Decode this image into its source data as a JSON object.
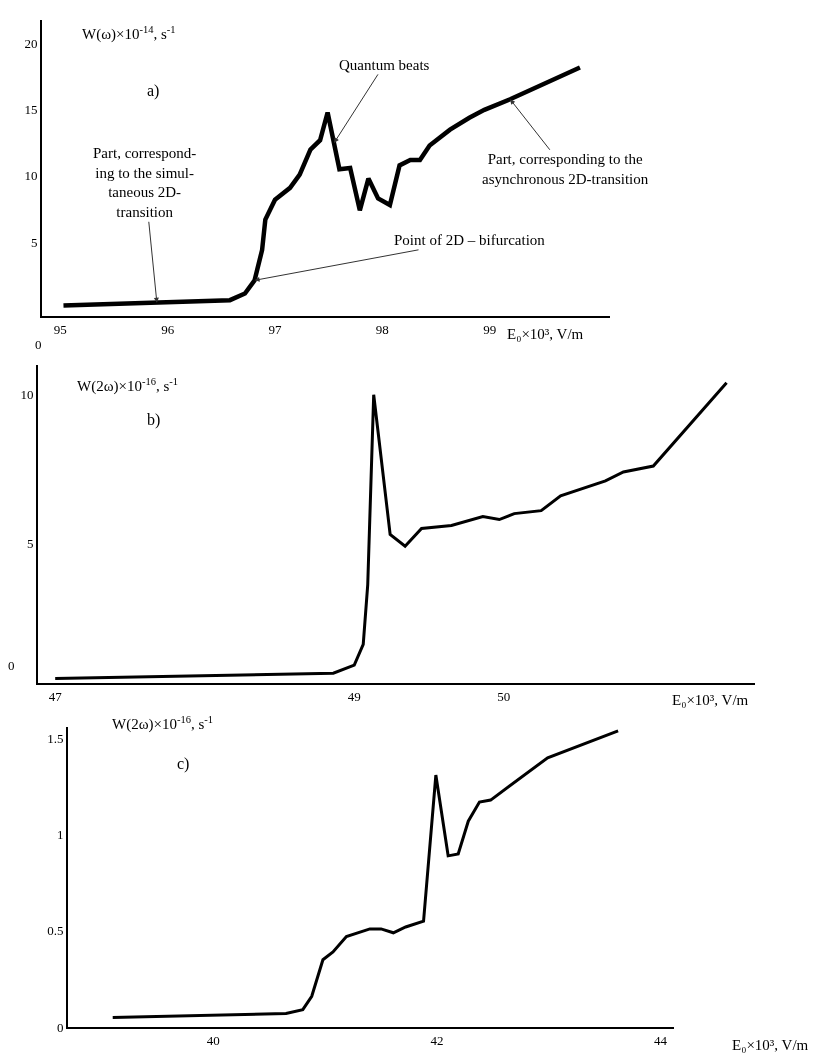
{
  "chart_data": [
    {
      "type": "line",
      "ylabel": "W(ω)×10$^{-14}$, s$^{-1}$",
      "xlabel": "E₀×10³, V/m",
      "xlim": [
        94.83,
        100.12
      ],
      "ylim": [
        -0.6,
        21.8
      ],
      "xticks": [
        95,
        96,
        97,
        98,
        99
      ],
      "yticks": [
        5,
        10,
        15,
        20
      ],
      "marker": "none",
      "line_style": "solid",
      "annotations": [
        "a)",
        {
          "text": "Quantum beats",
          "x": 97.55,
          "y": 12.5
        },
        {
          "text": "Point of 2D – bifurcation",
          "x": 96.81,
          "y": 2.1
        },
        {
          "text": "Part, correspond-\ning to the simul-\ntaneous 2D-\ntransition",
          "x": 95.9,
          "y": 0.4
        },
        {
          "text": "Part, corresponding to the\nasynchronous 2D-transition",
          "x": 99.19,
          "y": 15.8
        },
        "0"
      ],
      "x": [
        95.03,
        96.58,
        96.72,
        96.81,
        96.88,
        96.91,
        97.0,
        97.14,
        97.23,
        97.33,
        97.42,
        97.49,
        97.6,
        97.7,
        97.79,
        97.87,
        97.96,
        98.07,
        98.16,
        98.26,
        98.35,
        98.44,
        98.63,
        98.81,
        98.95,
        99.19,
        99.84
      ],
      "series": [
        {
          "color": "#000000",
          "values": [
            0.2,
            0.6,
            1.1,
            2.1,
            4.4,
            6.7,
            8.2,
            9.1,
            10.1,
            12.0,
            12.7,
            14.8,
            10.5,
            10.6,
            7.4,
            9.8,
            8.3,
            7.8,
            10.8,
            11.2,
            11.2,
            12.3,
            13.5,
            14.4,
            15.0,
            15.8,
            18.2
          ]
        }
      ]
    },
    {
      "type": "line",
      "ylabel": "W(2ω)×10$^{-16}$, s$^{-1}$",
      "xlabel": "E₀×10³, V/m",
      "xlim": [
        46.885,
        51.68
      ],
      "ylim": [
        0.3,
        11.0
      ],
      "xticks": [
        47,
        49,
        50
      ],
      "yticks": [
        5,
        10
      ],
      "marker": "none",
      "line_style": "solid",
      "annotations": [
        "b)",
        "0"
      ],
      "x": [
        47.0,
        48.86,
        49.0,
        49.06,
        49.09,
        49.13,
        49.24,
        49.34,
        49.45,
        49.65,
        49.86,
        49.97,
        50.07,
        50.25,
        50.38,
        50.68,
        50.8,
        51.0,
        51.49
      ],
      "series": [
        {
          "color": "#000000",
          "values": [
            0.45,
            0.63,
            0.9,
            1.6,
            3.6,
            10.0,
            5.3,
            4.9,
            5.5,
            5.6,
            5.9,
            5.8,
            6.0,
            6.1,
            6.6,
            7.1,
            7.4,
            7.6,
            10.4
          ]
        }
      ]
    },
    {
      "type": "line",
      "ylabel": "W(2ω)×10$^{-16}$, s$^{-1}$",
      "xlabel": "E₀×10³, V/m",
      "xlim": [
        38.7,
        44.12
      ],
      "ylim": [
        0,
        1.56
      ],
      "xticks": [
        40,
        42,
        44
      ],
      "yticks": [
        0,
        0.5,
        1,
        1.5
      ],
      "marker": "none",
      "line_style": "solid",
      "annotations": [
        "c)"
      ],
      "x": [
        39.1,
        40.65,
        40.8,
        40.88,
        40.98,
        41.07,
        41.19,
        41.4,
        41.5,
        41.61,
        41.72,
        41.88,
        41.99,
        42.1,
        42.19,
        42.28,
        42.38,
        42.48,
        42.99,
        43.62
      ],
      "series": [
        {
          "color": "#000000",
          "values": [
            0.05,
            0.07,
            0.09,
            0.16,
            0.35,
            0.39,
            0.47,
            0.51,
            0.51,
            0.49,
            0.52,
            0.55,
            1.31,
            0.89,
            0.9,
            1.07,
            1.17,
            1.18,
            1.4,
            1.54
          ]
        }
      ]
    }
  ]
}
